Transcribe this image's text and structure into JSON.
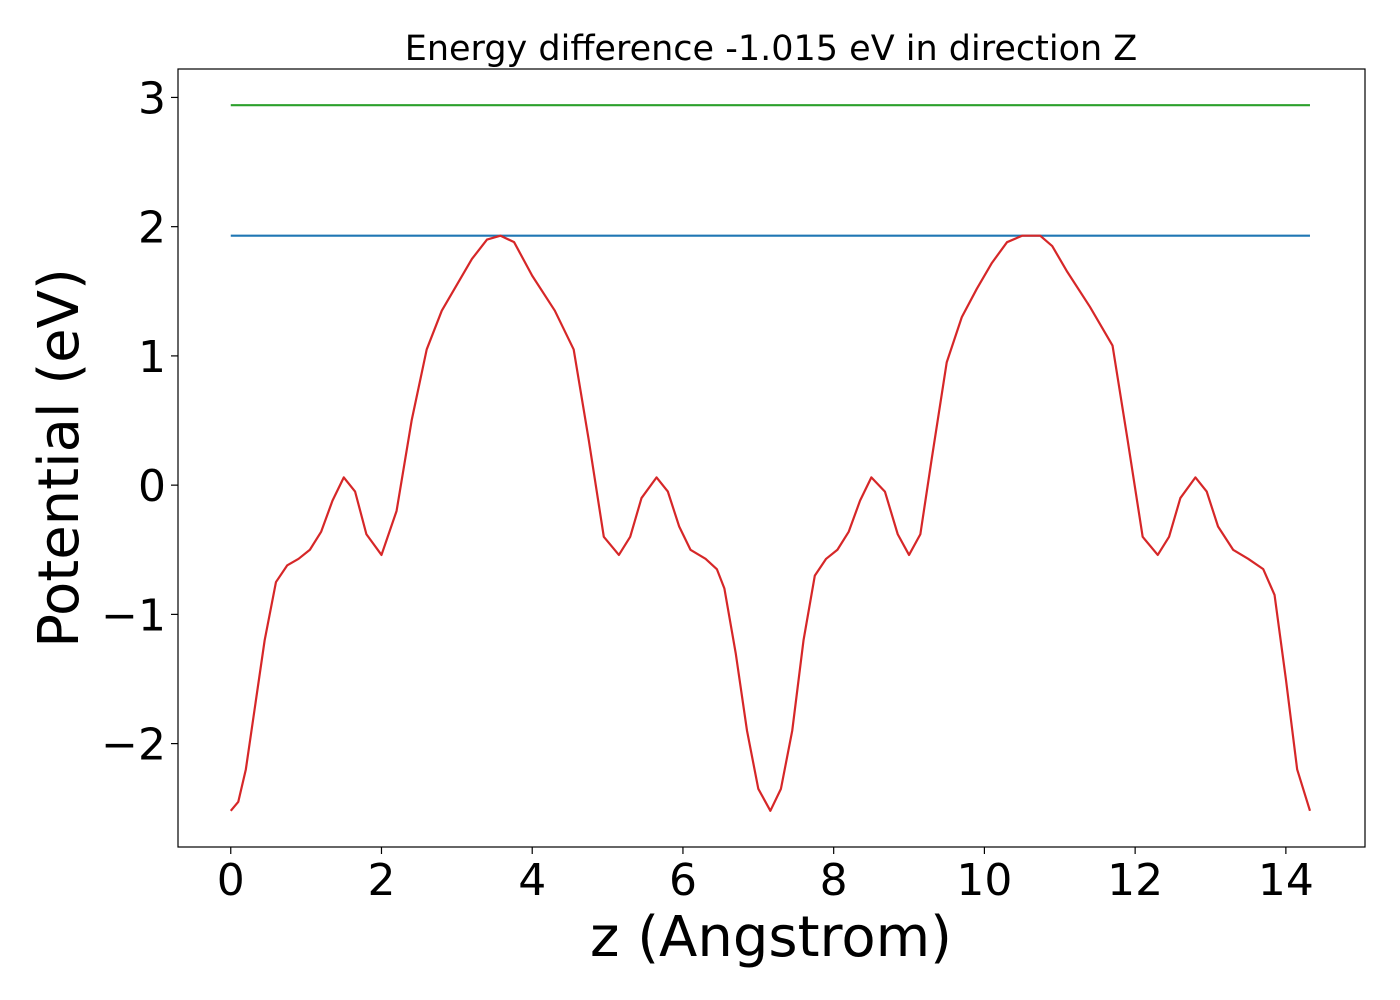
{
  "chart_data": {
    "type": "line",
    "title": "Energy difference -1.015 eV in direction Z",
    "xlabel": "z (Angstrom)",
    "ylabel": "Potential (eV)",
    "xlim": [
      -0.7,
      15.05
    ],
    "ylim": [
      -2.8,
      3.22
    ],
    "xticks": [
      0,
      2,
      4,
      6,
      8,
      10,
      12,
      14
    ],
    "yticks": [
      -2,
      -1,
      0,
      1,
      2,
      3
    ],
    "xtick_labels": [
      "0",
      "2",
      "4",
      "6",
      "8",
      "10",
      "12",
      "14"
    ],
    "ytick_labels": [
      "−2",
      "−1",
      "0",
      "1",
      "2",
      "3"
    ],
    "grid": false,
    "series": [
      {
        "color": "#2ca02c",
        "x": [
          0,
          14.32
        ],
        "y": [
          2.94,
          2.94
        ]
      },
      {
        "color": "#1f77b4",
        "x": [
          0,
          14.32
        ],
        "y": [
          1.93,
          1.93
        ]
      },
      {
        "color": "#d62728",
        "x": [
          0,
          0.1,
          0.2,
          0.3,
          0.45,
          0.6,
          0.75,
          0.9,
          1.05,
          1.2,
          1.35,
          1.5,
          1.65,
          1.8,
          2.0,
          2.2,
          2.4,
          2.6,
          2.8,
          3.0,
          3.2,
          3.4,
          3.58,
          3.76,
          4.0,
          4.3,
          4.55,
          4.75,
          4.95,
          5.15,
          5.3,
          5.45,
          5.65,
          5.8,
          5.95,
          6.1,
          6.3,
          6.45,
          6.55,
          6.7,
          6.85,
          7.0,
          7.16,
          7.3,
          7.45,
          7.6,
          7.75,
          7.9,
          8.05,
          8.2,
          8.35,
          8.5,
          8.68,
          8.85,
          9.0,
          9.15,
          9.3,
          9.5,
          9.7,
          9.9,
          10.1,
          10.3,
          10.5,
          10.74,
          10.9,
          11.1,
          11.4,
          11.7,
          11.9,
          12.1,
          12.3,
          12.45,
          12.6,
          12.8,
          12.95,
          13.1,
          13.3,
          13.5,
          13.7,
          13.85,
          14.0,
          14.15,
          14.32
        ],
        "y": [
          -2.52,
          -2.45,
          -2.2,
          -1.8,
          -1.2,
          -0.75,
          -0.62,
          -0.57,
          -0.5,
          -0.36,
          -0.12,
          0.06,
          -0.05,
          -0.38,
          -0.54,
          -0.2,
          0.5,
          1.05,
          1.35,
          1.55,
          1.75,
          1.9,
          1.93,
          1.88,
          1.62,
          1.35,
          1.05,
          0.35,
          -0.4,
          -0.54,
          -0.4,
          -0.1,
          0.06,
          -0.05,
          -0.32,
          -0.5,
          -0.57,
          -0.65,
          -0.8,
          -1.3,
          -1.9,
          -2.35,
          -2.52,
          -2.35,
          -1.9,
          -1.2,
          -0.7,
          -0.57,
          -0.5,
          -0.36,
          -0.12,
          0.06,
          -0.05,
          -0.38,
          -0.54,
          -0.38,
          0.2,
          0.95,
          1.3,
          1.52,
          1.72,
          1.88,
          1.93,
          1.93,
          1.85,
          1.65,
          1.38,
          1.08,
          0.35,
          -0.4,
          -0.54,
          -0.4,
          -0.1,
          0.06,
          -0.05,
          -0.32,
          -0.5,
          -0.57,
          -0.65,
          -0.85,
          -1.5,
          -2.2,
          -2.52
        ]
      }
    ]
  }
}
